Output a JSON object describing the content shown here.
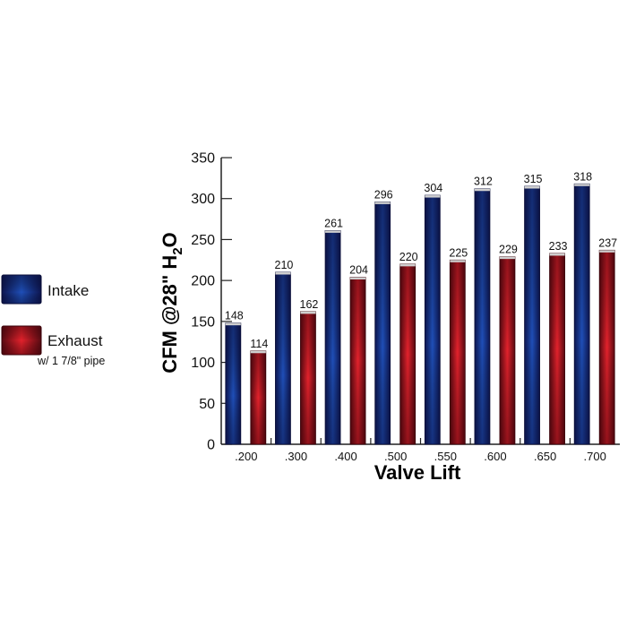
{
  "chart_data": {
    "type": "bar",
    "title": "",
    "xlabel": "Valve Lift",
    "ylabel": "CFM @28\" H2O",
    "ylabel_main": "CFM @28\" H",
    "ylabel_subscript": "2",
    "ylabel_tail": "O",
    "ylim": [
      0,
      350
    ],
    "yticks": [
      "0",
      "50",
      "100",
      "150",
      "200",
      "250",
      "300",
      "350"
    ],
    "categories": [
      ".200",
      ".300",
      ".400",
      ".500",
      ".550",
      ".600",
      ".650",
      ".700"
    ],
    "series": [
      {
        "name": "Intake",
        "values": [
          148,
          210,
          261,
          296,
          304,
          312,
          315,
          318
        ]
      },
      {
        "name": "Exhaust",
        "note": "w/ 1 7/8\" pipe",
        "values": [
          114,
          162,
          204,
          220,
          225,
          229,
          233,
          237
        ]
      }
    ],
    "legend_position": "left",
    "grid": false
  },
  "colors": {
    "intake_dark": "#0d1550",
    "intake_mid": "#1f4fb8",
    "exhaust_dark": "#5a0a12",
    "exhaust_mid": "#e3222c"
  }
}
